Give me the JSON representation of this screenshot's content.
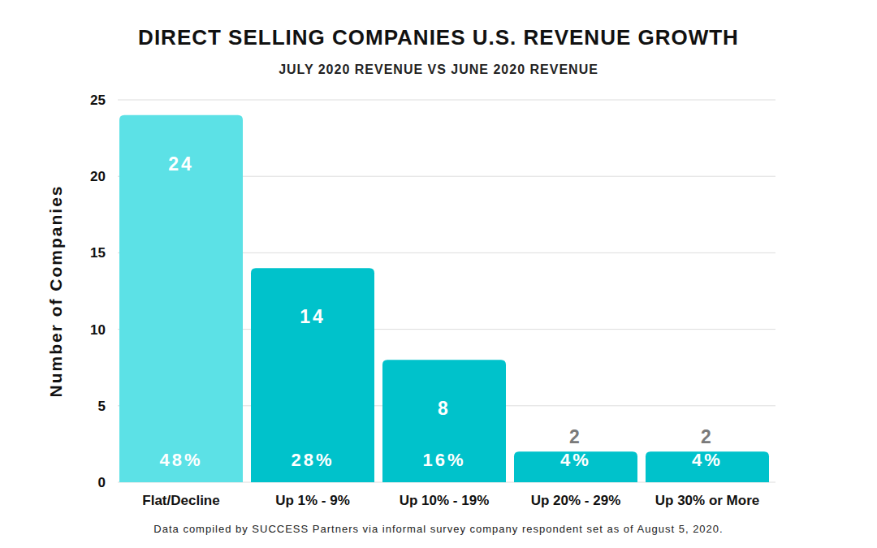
{
  "chart_data": {
    "type": "bar",
    "title": "DIRECT SELLING COMPANIES U.S. REVENUE GROWTH",
    "subtitle": "JULY 2020 REVENUE VS JUNE 2020 REVENUE",
    "y_label": "Number of Companies",
    "note": "Data compiled by SUCCESS Partners via informal survey company respondent set as of August 5, 2020.",
    "categories": [
      "Flat/Decline",
      "Up 1% - 9%",
      "Up 10% - 19%",
      "Up 20% - 29%",
      "Up 30% or More"
    ],
    "values": [
      24,
      14,
      8,
      2,
      2
    ],
    "share_labels": [
      "48%",
      "28%",
      "16%",
      "4%",
      "4%"
    ],
    "colors": [
      "#5ce1e6",
      "#00c2cb",
      "#00c2cb",
      "#00c2cb",
      "#00c2cb"
    ],
    "ylim": [
      0,
      25
    ],
    "yticks": [
      0,
      5,
      10,
      15,
      20,
      25
    ],
    "grid": true,
    "data_labels": true
  }
}
